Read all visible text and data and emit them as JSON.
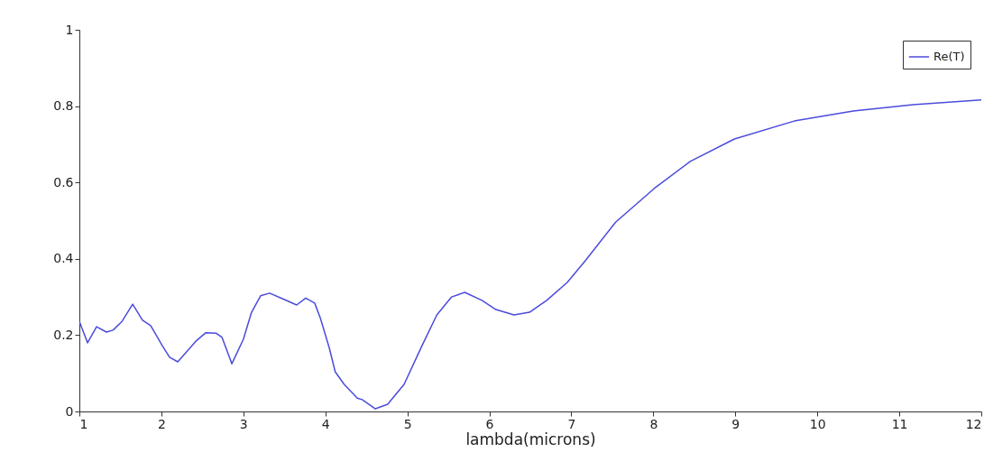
{
  "chart_data": {
    "type": "line",
    "xlabel": "lambda(microns)",
    "x": [
      1.0,
      1.1,
      1.21,
      1.33,
      1.41,
      1.52,
      1.65,
      1.77,
      1.87,
      2.01,
      2.1,
      2.2,
      2.42,
      2.54,
      2.67,
      2.74,
      2.86,
      3.0,
      3.1,
      3.21,
      3.32,
      3.47,
      3.65,
      3.76,
      3.87,
      3.94,
      4.05,
      4.12,
      4.23,
      4.39,
      4.45,
      4.61,
      4.76,
      4.96,
      5.18,
      5.36,
      5.54,
      5.7,
      5.91,
      6.08,
      6.3,
      6.49,
      6.7,
      6.95,
      7.17,
      7.54,
      8.01,
      8.45,
      8.99,
      9.72,
      10.44,
      11.17,
      12.0
    ],
    "series": [
      {
        "name": "Re(T)",
        "color": "#4b4bdc",
        "values": [
          0.236,
          0.18,
          0.222,
          0.208,
          0.213,
          0.236,
          0.281,
          0.239,
          0.225,
          0.173,
          0.142,
          0.13,
          0.184,
          0.206,
          0.205,
          0.194,
          0.125,
          0.189,
          0.26,
          0.303,
          0.31,
          0.296,
          0.279,
          0.297,
          0.284,
          0.244,
          0.165,
          0.104,
          0.071,
          0.035,
          0.031,
          0.007,
          0.019,
          0.071,
          0.173,
          0.253,
          0.3,
          0.312,
          0.291,
          0.267,
          0.253,
          0.26,
          0.291,
          0.338,
          0.395,
          0.496,
          0.584,
          0.655,
          0.714,
          0.761,
          0.787,
          0.804,
          0.816
        ]
      }
    ],
    "xlim": [
      1,
      12
    ],
    "xticks": [
      1,
      2,
      3,
      4,
      5,
      6,
      7,
      8,
      9,
      10,
      11,
      12
    ],
    "ylim": [
      0,
      1
    ],
    "yticks": [
      0,
      0.2,
      0.4,
      0.6,
      0.8,
      1
    ],
    "grid": false,
    "legend": "top right",
    "marker": "none",
    "line_style": "solid"
  }
}
